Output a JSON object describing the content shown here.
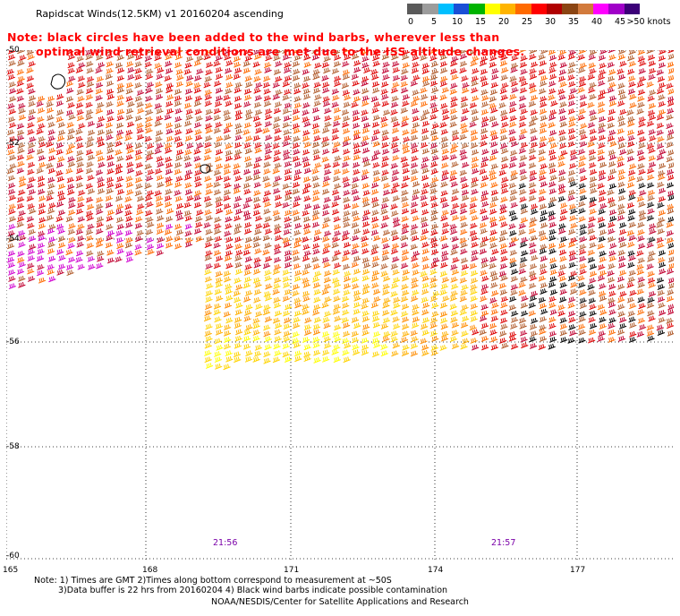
{
  "title": "Rapidscat Winds(12.5KM) v1 20160204 ascending",
  "notice": {
    "line1": "Note: black circles have been added to the wind barbs, wherever less than",
    "line2": "optimal wind retrieval conditions are met due to the ISS altitude changes."
  },
  "legend": {
    "labels": [
      "0",
      "5",
      "10",
      "15",
      "20",
      "25",
      "30",
      "35",
      "40",
      "45",
      ">50 knots"
    ],
    "colors": [
      "#5a5a5a",
      "#9c9c9c",
      "#00bfff",
      "#1a4fd6",
      "#00b400",
      "#ffff00",
      "#ffb400",
      "#ff6a00",
      "#ff0000",
      "#b00000",
      "#8b4513",
      "#d27a3c",
      "#ff00ff",
      "#a000c8",
      "#3c0078"
    ]
  },
  "axes": {
    "lat_labels": [
      "-50",
      "-52",
      "-54",
      "-56",
      "-58",
      "-60"
    ],
    "lon_labels": [
      "165",
      "168",
      "171",
      "174",
      "177"
    ]
  },
  "times": [
    "21:56",
    "21:57"
  ],
  "footnotes": {
    "line1": "Note: 1) Times are GMT 2)Times along bottom correspond to measurement at ~50S",
    "line2": "3)Data buffer is 22 hrs from 20160204 4) Black wind barbs indicate possible contamination"
  },
  "credit": "NOAA/NESDIS/Center for Satellite Applications and Research"
}
